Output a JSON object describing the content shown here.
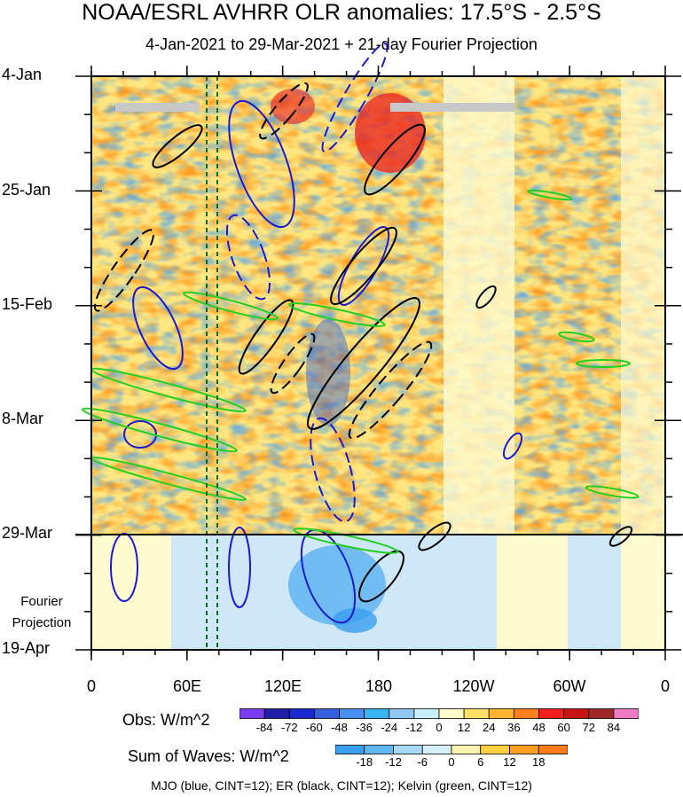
{
  "chart_data": {
    "type": "heatmap",
    "title": "NOAA/ESRL AVHRR OLR anomalies: 17.5°S - 2.5°S",
    "subtitle": "4-Jan-2021 to 29-Mar-2021 + 21-day Fourier Projection",
    "y_tick_labels": [
      "4-Jan",
      "25-Jan",
      "15-Feb",
      "8-Mar",
      "29-Mar",
      "19-Apr"
    ],
    "x_tick_labels": [
      "0",
      "60E",
      "120E",
      "180",
      "120W",
      "60W",
      "0"
    ],
    "projection_label": [
      "Fourier",
      "Projection"
    ],
    "obs_colorbar": {
      "label": "Obs: W/m^2",
      "ticks": [
        "-84",
        "-72",
        "-60",
        "-48",
        "-36",
        "-24",
        "-12",
        "0",
        "12",
        "24",
        "36",
        "48",
        "60",
        "72",
        "84"
      ],
      "colors": [
        "#7a3ef0",
        "#1e1ea8",
        "#1a2ad0",
        "#3560e0",
        "#4790f0",
        "#3ab4f0",
        "#8fc8f5",
        "#c8eef8",
        "#fffbc8",
        "#ffe066",
        "#ffb52e",
        "#ff7f1e",
        "#f51e1e",
        "#c81414",
        "#a02828",
        "#f07ac8"
      ]
    },
    "waves_colorbar": {
      "label": "Sum of Waves: W/m^2",
      "ticks": [
        "-18",
        "-12",
        "-6",
        "0",
        "6",
        "12",
        "18"
      ],
      "colors": [
        "#3aa0f0",
        "#60b8f5",
        "#a8d8f8",
        "#d8f0fb",
        "#fff3b0",
        "#ffd040",
        "#ffa020",
        "#ff7a10"
      ]
    },
    "footnote": "MJO (blue, CINT=12); ER (black, CINT=12); Kelvin (green, CINT=12)"
  }
}
